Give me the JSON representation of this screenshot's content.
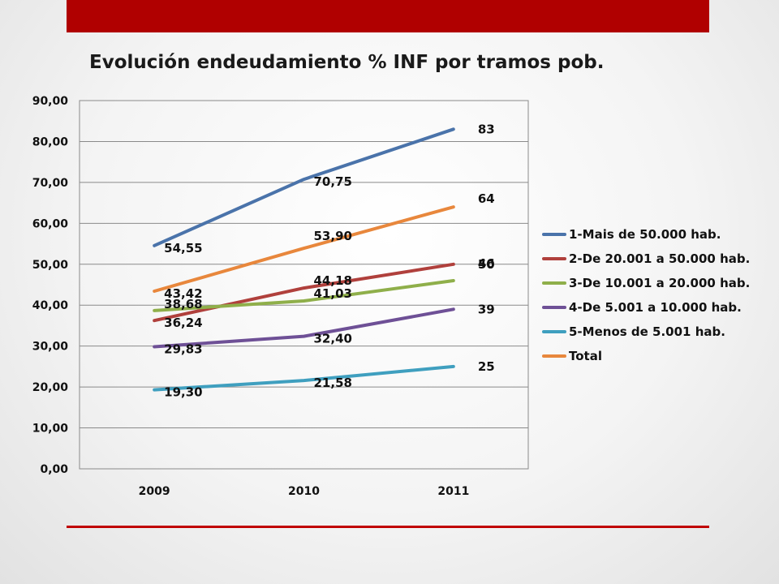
{
  "slide": {
    "accent_color": "#b00000"
  },
  "chart_data": {
    "type": "line",
    "title": "Evolución endeudamiento % INF por tramos pob.",
    "xlabel": "",
    "ylabel": "",
    "categories": [
      "2009",
      "2010",
      "2011"
    ],
    "ylim": [
      0,
      90
    ],
    "yticks": [
      "0,00",
      "10,00",
      "20,00",
      "30,00",
      "40,00",
      "50,00",
      "60,00",
      "70,00",
      "80,00",
      "90,00"
    ],
    "grid": true,
    "legend_position": "right",
    "series": [
      {
        "name": "1-Mais de 50.000 hab.",
        "color": "#4a73aa",
        "values": [
          54.55,
          70.75,
          83
        ],
        "labels": [
          "54,55",
          "70,75",
          "83"
        ]
      },
      {
        "name": "2-De 20.001 a 50.000 hab.",
        "color": "#b0403c",
        "values": [
          36.24,
          44.18,
          50
        ],
        "labels": [
          "36,24",
          "44,18",
          "50"
        ]
      },
      {
        "name": "3-De 10.001 a 20.000 hab.",
        "color": "#8faf4a",
        "values": [
          38.68,
          41.03,
          46
        ],
        "labels": [
          "38,68",
          "41,03",
          "46"
        ]
      },
      {
        "name": "4-De 5.001 a 10.000 hab.",
        "color": "#6e5096",
        "values": [
          29.83,
          32.4,
          39
        ],
        "labels": [
          "29,83",
          "32,40",
          "39"
        ]
      },
      {
        "name": "5-Menos de 5.001 hab.",
        "color": "#3f9fbf",
        "values": [
          19.3,
          21.58,
          25
        ],
        "labels": [
          "19,30",
          "21,58",
          "25"
        ]
      },
      {
        "name": "Total",
        "color": "#e8873c",
        "values": [
          43.42,
          53.9,
          64
        ],
        "labels": [
          "43,42",
          "53,90",
          "64"
        ]
      }
    ]
  }
}
